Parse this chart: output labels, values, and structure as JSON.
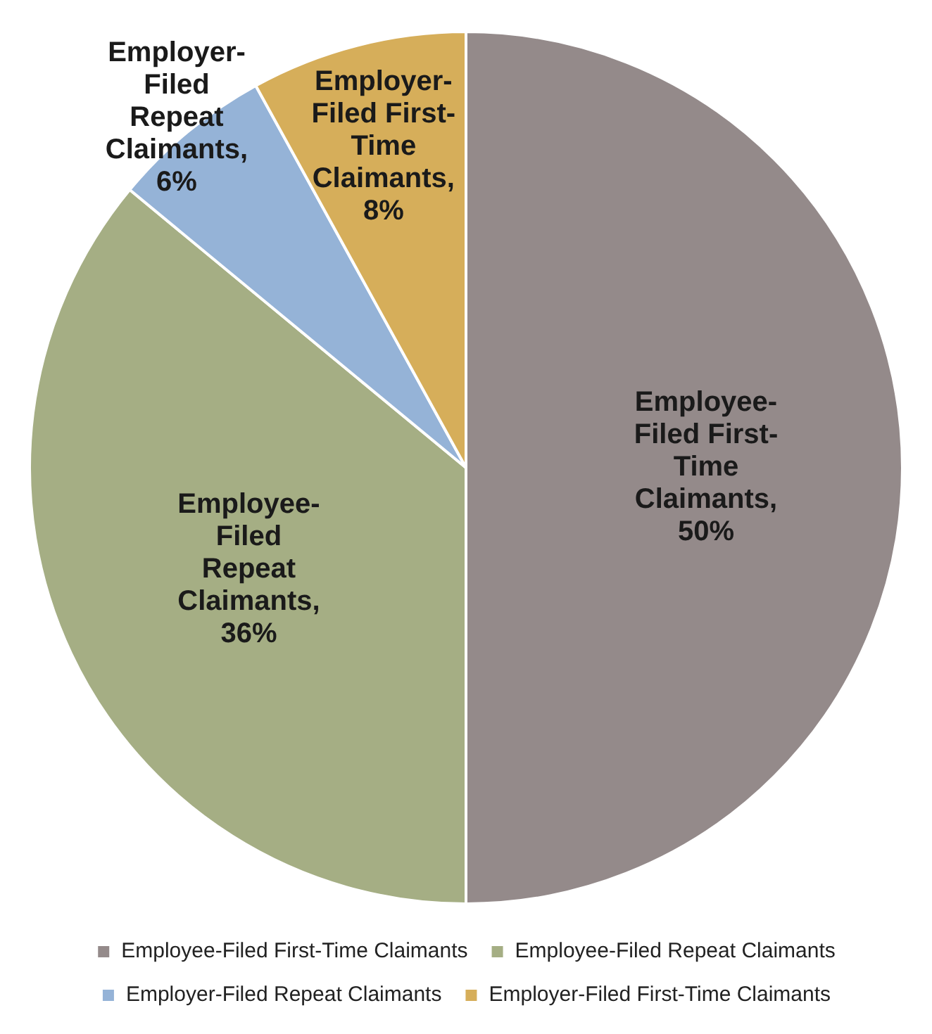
{
  "chart_data": {
    "type": "pie",
    "categories": [
      "Employee-Filed First-Time Claimants",
      "Employee-Filed Repeat Claimants",
      "Employer-Filed Repeat Claimants",
      "Employer-Filed First-Time Claimants"
    ],
    "values": [
      50,
      36,
      6,
      8
    ],
    "colors": [
      "#948a8a",
      "#a5ae84",
      "#95b3d7",
      "#d6ae5a"
    ],
    "value_labels": [
      "Employee-Filed First-Time Claimants, 50%",
      "Employee-Filed Repeat Claimants, 36%",
      "Employer-Filed Repeat Claimants, 6%",
      "Employer-Filed First-Time Claimants, 8%"
    ],
    "legend": "bottom"
  }
}
